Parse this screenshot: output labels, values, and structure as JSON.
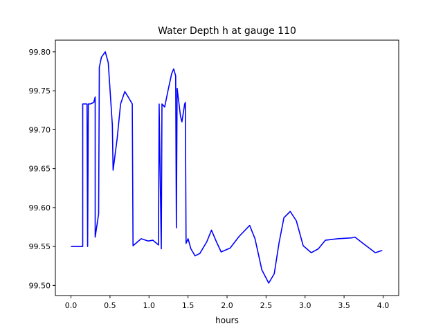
{
  "chart_data": {
    "type": "line",
    "title": "Water Depth h at gauge 110",
    "xlabel": "hours",
    "ylabel": "",
    "xlim": [
      -0.2,
      4.2
    ],
    "ylim": [
      99.487,
      99.815
    ],
    "xticks": [
      0.0,
      0.5,
      1.0,
      1.5,
      2.0,
      2.5,
      3.0,
      3.5,
      4.0
    ],
    "xtick_labels": [
      "0.0",
      "0.5",
      "1.0",
      "1.5",
      "2.0",
      "2.5",
      "3.0",
      "3.5",
      "4.0"
    ],
    "yticks": [
      99.5,
      99.55,
      99.6,
      99.65,
      99.7,
      99.75,
      99.8
    ],
    "ytick_labels": [
      "99.50",
      "99.55",
      "99.60",
      "99.65",
      "99.70",
      "99.75",
      "99.80"
    ],
    "grid": false,
    "series": [
      {
        "name": "h",
        "color": "#0000ff",
        "points": [
          [
            0.0,
            99.55
          ],
          [
            0.15,
            99.55
          ],
          [
            0.15,
            99.733
          ],
          [
            0.205,
            99.733
          ],
          [
            0.213,
            99.55
          ],
          [
            0.222,
            99.733
          ],
          [
            0.248,
            99.733
          ],
          [
            0.292,
            99.735
          ],
          [
            0.31,
            99.742
          ],
          [
            0.31,
            99.562
          ],
          [
            0.354,
            99.592
          ],
          [
            0.363,
            99.78
          ],
          [
            0.39,
            99.793
          ],
          [
            0.44,
            99.8
          ],
          [
            0.478,
            99.786
          ],
          [
            0.53,
            99.706
          ],
          [
            0.54,
            99.648
          ],
          [
            0.592,
            99.689
          ],
          [
            0.636,
            99.733
          ],
          [
            0.69,
            99.749
          ],
          [
            0.733,
            99.742
          ],
          [
            0.786,
            99.733
          ],
          [
            0.795,
            99.551
          ],
          [
            0.9,
            99.56
          ],
          [
            0.989,
            99.557
          ],
          [
            1.051,
            99.558
          ],
          [
            1.122,
            99.552
          ],
          [
            1.13,
            99.733
          ],
          [
            1.157,
            99.547
          ],
          [
            1.166,
            99.733
          ],
          [
            1.201,
            99.729
          ],
          [
            1.245,
            99.751
          ],
          [
            1.29,
            99.772
          ],
          [
            1.316,
            99.778
          ],
          [
            1.342,
            99.769
          ],
          [
            1.351,
            99.574
          ],
          [
            1.36,
            99.753
          ],
          [
            1.404,
            99.717
          ],
          [
            1.422,
            99.71
          ],
          [
            1.457,
            99.733
          ],
          [
            1.466,
            99.735
          ],
          [
            1.475,
            99.554
          ],
          [
            1.501,
            99.56
          ],
          [
            1.537,
            99.547
          ],
          [
            1.59,
            99.538
          ],
          [
            1.651,
            99.541
          ],
          [
            1.74,
            99.556
          ],
          [
            1.8,
            99.571
          ],
          [
            1.864,
            99.556
          ],
          [
            1.925,
            99.543
          ],
          [
            2.04,
            99.548
          ],
          [
            2.155,
            99.563
          ],
          [
            2.29,
            99.577
          ],
          [
            2.358,
            99.56
          ],
          [
            2.446,
            99.52
          ],
          [
            2.534,
            99.503
          ],
          [
            2.605,
            99.515
          ],
          [
            2.667,
            99.555
          ],
          [
            2.729,
            99.587
          ],
          [
            2.81,
            99.595
          ],
          [
            2.888,
            99.583
          ],
          [
            2.976,
            99.551
          ],
          [
            3.08,
            99.542
          ],
          [
            3.17,
            99.547
          ],
          [
            3.26,
            99.558
          ],
          [
            3.417,
            99.56
          ],
          [
            3.594,
            99.561
          ],
          [
            3.64,
            99.562
          ],
          [
            3.73,
            99.555
          ],
          [
            3.9,
            99.542
          ],
          [
            3.99,
            99.545
          ]
        ]
      }
    ]
  }
}
